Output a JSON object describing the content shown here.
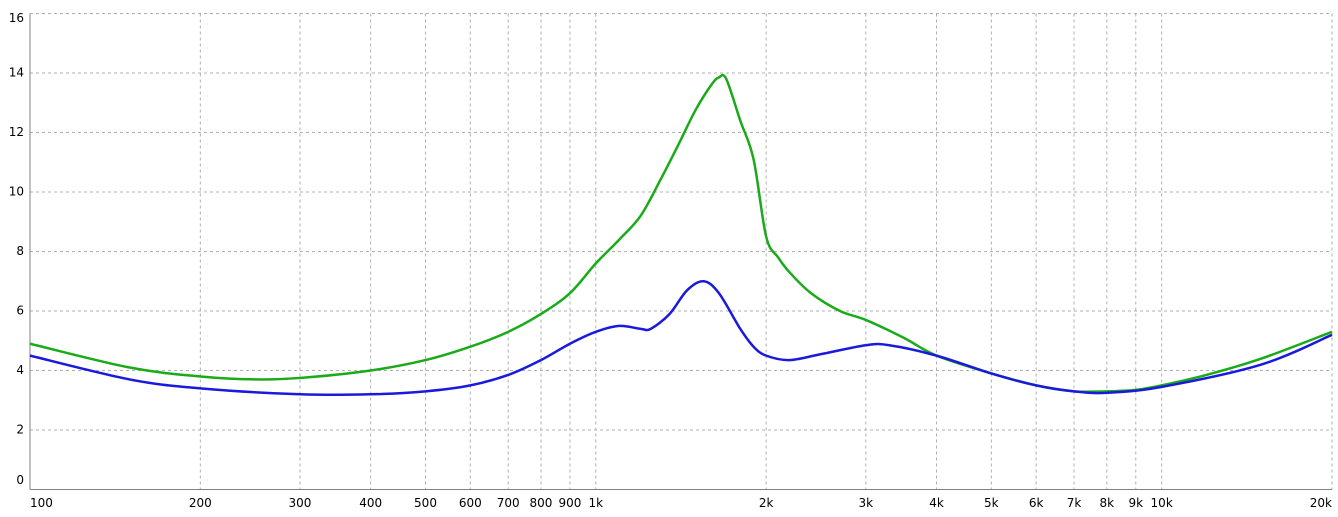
{
  "chart_data": {
    "type": "line",
    "xscale": "log",
    "grid": true,
    "xlim": [
      100,
      20000
    ],
    "ylim": [
      0,
      16
    ],
    "yticks": [
      0,
      2,
      4,
      6,
      8,
      10,
      12,
      14,
      16
    ],
    "xticks": [
      100,
      200,
      300,
      400,
      500,
      600,
      700,
      800,
      900,
      {
        "value": 1000,
        "label": "1k"
      },
      {
        "value": 2000,
        "label": "2k"
      },
      {
        "value": 3000,
        "label": "3k"
      },
      {
        "value": 4000,
        "label": "4k"
      },
      {
        "value": 5000,
        "label": "5k"
      },
      {
        "value": 6000,
        "label": "6k"
      },
      {
        "value": 7000,
        "label": "7k"
      },
      {
        "value": 8000,
        "label": "8k"
      },
      {
        "value": 9000,
        "label": "9k"
      },
      {
        "value": 10000,
        "label": "10k"
      },
      {
        "value": 20000,
        "label": "20k"
      }
    ],
    "series": [
      {
        "color": "#1aaa1a",
        "x": [
          100,
          150,
          200,
          250,
          300,
          400,
          500,
          600,
          700,
          800,
          900,
          1000,
          1100,
          1200,
          1300,
          1400,
          1500,
          1600,
          1650,
          1700,
          1800,
          1900,
          2000,
          2100,
          2200,
          2400,
          2700,
          3000,
          3500,
          4000,
          5000,
          6000,
          7000,
          8000,
          9000,
          10000,
          12000,
          15000,
          20000
        ],
        "values": [
          4.9,
          4.1,
          3.8,
          3.7,
          3.75,
          4.0,
          4.35,
          4.8,
          5.3,
          5.9,
          6.6,
          7.6,
          8.4,
          9.2,
          10.4,
          11.6,
          12.75,
          13.6,
          13.85,
          13.8,
          12.4,
          11.1,
          8.5,
          7.8,
          7.3,
          6.6,
          6.0,
          5.7,
          5.1,
          4.5,
          3.9,
          3.5,
          3.3,
          3.3,
          3.35,
          3.5,
          3.85,
          4.4,
          5.3
        ]
      },
      {
        "color": "#1a1adc",
        "x": [
          100,
          150,
          200,
          300,
          400,
          500,
          600,
          700,
          800,
          900,
          1000,
          1100,
          1200,
          1250,
          1350,
          1450,
          1550,
          1650,
          1800,
          1900,
          2000,
          2200,
          2500,
          3000,
          3300,
          4000,
          5000,
          6000,
          7000,
          8000,
          10000,
          15000,
          20000
        ],
        "values": [
          4.5,
          3.7,
          3.4,
          3.2,
          3.2,
          3.3,
          3.5,
          3.85,
          4.35,
          4.9,
          5.3,
          5.5,
          5.4,
          5.4,
          5.9,
          6.7,
          7.0,
          6.6,
          5.4,
          4.8,
          4.5,
          4.35,
          4.55,
          4.85,
          4.85,
          4.5,
          3.9,
          3.5,
          3.3,
          3.25,
          3.45,
          4.2,
          5.2
        ]
      }
    ]
  }
}
